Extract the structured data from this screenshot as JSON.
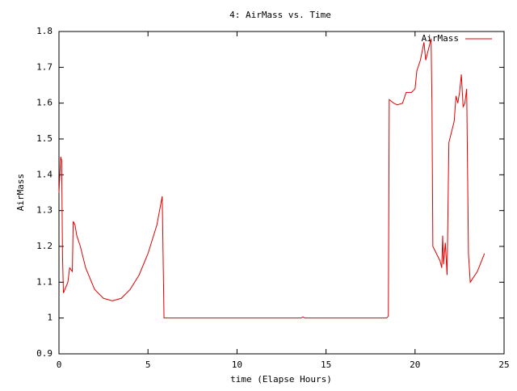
{
  "chart_data": {
    "type": "line",
    "title": "4: AirMass vs. Time",
    "x_label": "time (Elapse Hours)",
    "y_label": "AirMass",
    "xlim": [
      0,
      25
    ],
    "xticks": [
      0,
      5,
      10,
      15,
      20,
      25
    ],
    "ylim": [
      0.9,
      1.8
    ],
    "yticks": [
      0.9,
      1,
      1.1,
      1.2,
      1.3,
      1.4,
      1.5,
      1.6,
      1.7,
      1.8
    ],
    "legend": "top-right",
    "series": [
      {
        "name": "AirMass",
        "color": "#e00000",
        "x": [
          0,
          0.1,
          0.15,
          0.2,
          0.25,
          0.5,
          0.6,
          0.75,
          0.8,
          0.9,
          1.0,
          1.2,
          1.5,
          2.0,
          2.5,
          3.0,
          3.5,
          4.0,
          4.5,
          5.0,
          5.5,
          5.8,
          5.9,
          10,
          13.6,
          13.7,
          13.8,
          18.4,
          18.5,
          18.55,
          18.8,
          19.0,
          19.3,
          19.5,
          19.8,
          20.0,
          20.1,
          20.3,
          20.5,
          20.6,
          20.8,
          20.9,
          20.95,
          21.0,
          21.2,
          21.4,
          21.5,
          21.55,
          21.6,
          21.7,
          21.8,
          21.9,
          22.0,
          22.2,
          22.3,
          22.4,
          22.5,
          22.6,
          22.7,
          22.8,
          22.9,
          23.0,
          23.1,
          23.5,
          23.9
        ],
        "values": [
          1.35,
          1.45,
          1.44,
          1.17,
          1.07,
          1.1,
          1.14,
          1.13,
          1.27,
          1.26,
          1.23,
          1.2,
          1.14,
          1.08,
          1.055,
          1.048,
          1.055,
          1.08,
          1.12,
          1.18,
          1.26,
          1.34,
          1.0,
          1.0,
          1.0,
          1.003,
          1.0,
          1.0,
          1.005,
          1.61,
          1.6,
          1.595,
          1.6,
          1.63,
          1.63,
          1.64,
          1.69,
          1.72,
          1.77,
          1.72,
          1.76,
          1.78,
          1.6,
          1.2,
          1.18,
          1.16,
          1.14,
          1.23,
          1.15,
          1.21,
          1.12,
          1.49,
          1.51,
          1.55,
          1.62,
          1.6,
          1.63,
          1.68,
          1.59,
          1.6,
          1.64,
          1.18,
          1.1,
          1.13,
          1.18
        ]
      }
    ]
  }
}
